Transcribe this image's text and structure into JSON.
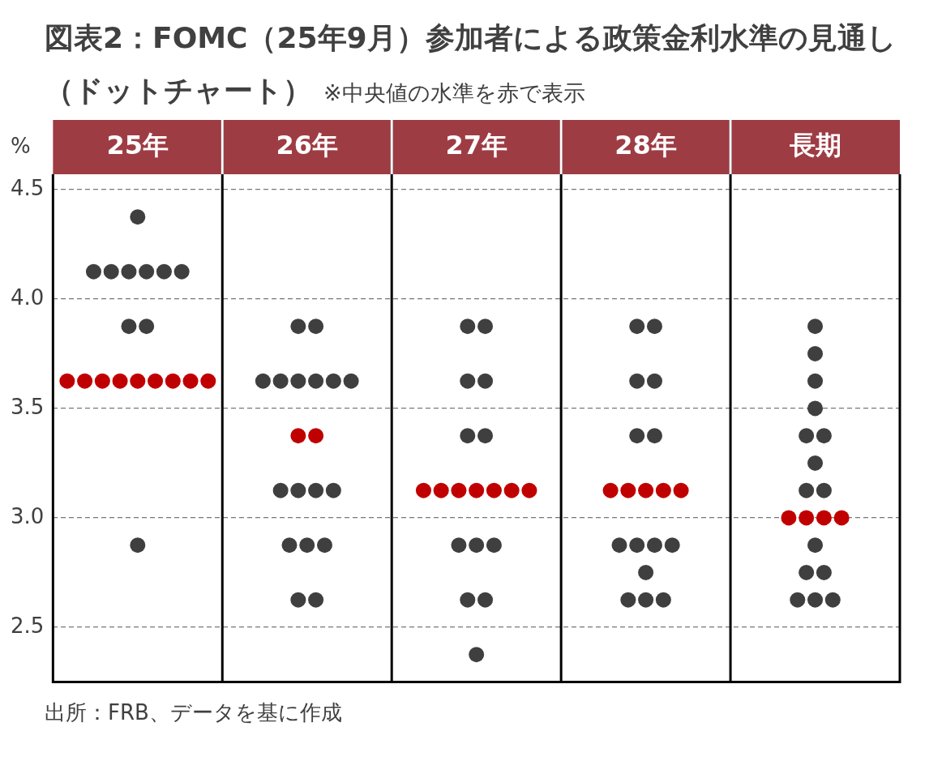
{
  "chart_data": {
    "type": "scatter",
    "title": "図表2：FOMC（25年9月）参加者による政策金利水準の見通し（ドットチャート）",
    "subtitle": "※中央値の水準を赤で表示",
    "ylabel": "%",
    "categories": [
      "25年",
      "26年",
      "27年",
      "28年",
      "長期"
    ],
    "ylim": [
      2.25,
      4.57
    ],
    "yticks": [
      2.5,
      {
        "value": 3,
        "label": "3.0"
      },
      3.5,
      {
        "value": 4,
        "label": "4.0"
      },
      4.5
    ],
    "grid": "y",
    "marker": "circle",
    "legend": false,
    "series": [
      {
        "color": "#3f3f3f",
        "x": [
          "25年",
          "25年",
          "25年",
          "25年",
          "25年",
          "25年",
          "25年",
          "25年",
          "25年",
          "25年",
          "26年",
          "26年",
          "26年",
          "26年",
          "26年",
          "26年",
          "26年",
          "26年",
          "26年",
          "26年",
          "26年",
          "26年",
          "26年",
          "26年",
          "26年",
          "26年",
          "26年",
          "27年",
          "27年",
          "27年",
          "27年",
          "27年",
          "27年",
          "27年",
          "27年",
          "27年",
          "27年",
          "27年",
          "27年",
          "28年",
          "28年",
          "28年",
          "28年",
          "28年",
          "28年",
          "28年",
          "28年",
          "28年",
          "28年",
          "28年",
          "28年",
          "28年",
          "28年",
          "長期",
          "長期",
          "長期",
          "長期",
          "長期",
          "長期",
          "長期",
          "長期",
          "長期",
          "長期",
          "長期",
          "長期",
          "長期",
          "長期",
          "長期"
        ],
        "values": [
          4.375,
          4.125,
          4.125,
          4.125,
          4.125,
          4.125,
          4.125,
          3.875,
          3.875,
          2.875,
          3.875,
          3.875,
          3.625,
          3.625,
          3.625,
          3.625,
          3.625,
          3.625,
          3.125,
          3.125,
          3.125,
          3.125,
          2.875,
          2.875,
          2.875,
          2.625,
          2.625,
          3.875,
          3.875,
          3.625,
          3.625,
          3.375,
          3.375,
          2.875,
          2.875,
          2.875,
          2.625,
          2.625,
          2.375,
          3.875,
          3.875,
          3.625,
          3.625,
          3.375,
          3.375,
          2.875,
          2.875,
          2.875,
          2.875,
          2.75,
          2.625,
          2.625,
          2.625,
          3.875,
          3.75,
          3.625,
          3.5,
          3.375,
          3.375,
          3.25,
          3.125,
          3.125,
          2.875,
          2.75,
          2.75,
          2.625,
          2.625,
          2.625
        ]
      },
      {
        "color": "#c00000",
        "x": [
          "25年",
          "25年",
          "25年",
          "25年",
          "25年",
          "25年",
          "25年",
          "25年",
          "25年",
          "26年",
          "26年",
          "27年",
          "27年",
          "27年",
          "27年",
          "27年",
          "27年",
          "27年",
          "28年",
          "28年",
          "28年",
          "28年",
          "28年",
          "長期",
          "長期",
          "長期",
          "長期"
        ],
        "values": [
          3.625,
          3.625,
          3.625,
          3.625,
          3.625,
          3.625,
          3.625,
          3.625,
          3.625,
          3.375,
          3.375,
          3.125,
          3.125,
          3.125,
          3.125,
          3.125,
          3.125,
          3.125,
          3.125,
          3.125,
          3.125,
          3.125,
          3.125,
          3.0,
          3.0,
          3.0,
          3.0
        ]
      }
    ],
    "annotations": [
      "出所：FRB、データを基に作成"
    ]
  }
}
